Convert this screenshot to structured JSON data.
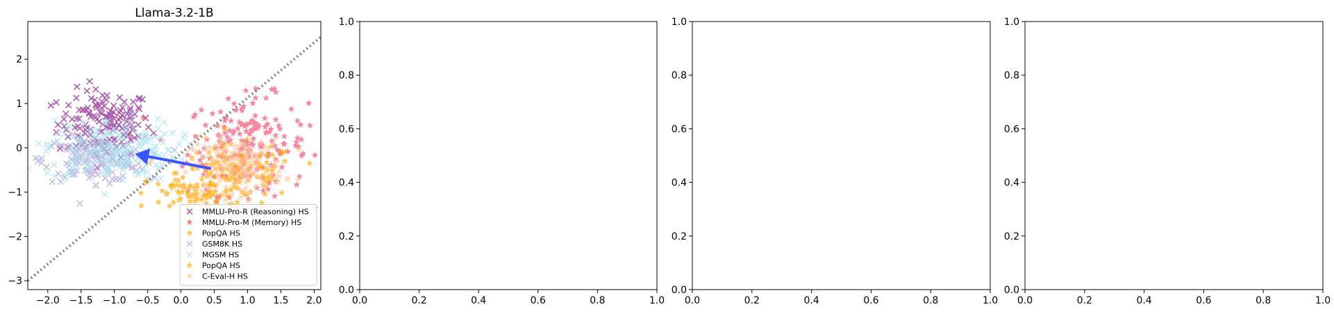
{
  "chart_data": [
    {
      "type": "scatter",
      "title": "Llama-3.2-1B",
      "xlim": [
        -2.3,
        2.1
      ],
      "ylim": [
        -3.2,
        2.85
      ],
      "xticks": [
        -2.0,
        -1.5,
        -1.0,
        -0.5,
        0.0,
        0.5,
        1.0,
        1.5,
        2.0
      ],
      "xtick_labels": [
        "−2.0",
        "−1.5",
        "−1.0",
        "−0.5",
        "0.0",
        "0.5",
        "1.0",
        "1.5",
        "2.0"
      ],
      "yticks": [
        -3,
        -2,
        -1,
        0,
        1,
        2
      ],
      "ytick_labels": [
        "−3",
        "−2",
        "−1",
        "0",
        "1",
        "2"
      ],
      "legend_position": "bottom-right",
      "series": [
        {
          "name": "MMLU-Pro-R (Reasoning) HS",
          "marker": "x",
          "color": "#8b1a8b",
          "center": [
            -1.15,
            0.55
          ],
          "spread": [
            0.35,
            0.38
          ],
          "count": 150
        },
        {
          "name": "MMLU-Pro-M (Memory) HS",
          "marker": "star",
          "color": "#f0486e",
          "center": [
            1.0,
            0.05
          ],
          "spread": [
            0.45,
            0.55
          ],
          "count": 200
        },
        {
          "name": "PopQA HS",
          "marker": "star",
          "color": "#ffa500",
          "center": [
            0.85,
            -0.55
          ],
          "spread": [
            0.45,
            0.3
          ],
          "count": 120
        },
        {
          "name": "GSM8K HS",
          "marker": "x",
          "color": "#b0a0d8",
          "center": [
            -1.3,
            -0.25
          ],
          "spread": [
            0.38,
            0.25
          ],
          "count": 150
        },
        {
          "name": "MGSM HS",
          "marker": "x",
          "color": "#a8e2ee",
          "center": [
            -1.05,
            -0.05
          ],
          "spread": [
            0.5,
            0.35
          ],
          "count": 220
        },
        {
          "name": "PopQA HS",
          "marker": "star",
          "color": "#ffa500",
          "center": [
            0.3,
            -1.05
          ],
          "spread": [
            0.4,
            0.2
          ],
          "count": 80
        },
        {
          "name": "C-Eval-H HS",
          "marker": "star",
          "color": "#ffc89a",
          "center": [
            0.85,
            -0.4
          ],
          "spread": [
            0.35,
            0.3
          ],
          "count": 180
        }
      ],
      "diagonal": {
        "from": [
          -2.3,
          -3.0
        ],
        "to": [
          2.1,
          2.5
        ],
        "color": "#808080",
        "style": "dotted"
      },
      "arrow": {
        "from": [
          0.45,
          -0.47
        ],
        "to": [
          -0.65,
          -0.15
        ],
        "color": "#3a54ff"
      }
    },
    {
      "type": "scatter",
      "xlim": [
        0.0,
        1.0
      ],
      "ylim": [
        0.0,
        1.0
      ],
      "xticks": [
        0.0,
        0.2,
        0.4,
        0.6,
        0.8,
        1.0
      ],
      "xtick_labels": [
        "0.0",
        "0.2",
        "0.4",
        "0.6",
        "0.8",
        "1.0"
      ],
      "yticks": [
        0.0,
        0.2,
        0.4,
        0.6,
        0.8,
        1.0
      ],
      "ytick_labels": [
        "0.0",
        "0.2",
        "0.4",
        "0.6",
        "0.8",
        "1.0"
      ],
      "series": []
    },
    {
      "type": "scatter",
      "xlim": [
        0.0,
        1.0
      ],
      "ylim": [
        0.0,
        1.0
      ],
      "xticks": [
        0.0,
        0.2,
        0.4,
        0.6,
        0.8,
        1.0
      ],
      "xtick_labels": [
        "0.0",
        "0.2",
        "0.4",
        "0.6",
        "0.8",
        "1.0"
      ],
      "yticks": [
        0.0,
        0.2,
        0.4,
        0.6,
        0.8,
        1.0
      ],
      "ytick_labels": [
        "0.0",
        "0.2",
        "0.4",
        "0.6",
        "0.8",
        "1.0"
      ],
      "series": []
    },
    {
      "type": "scatter",
      "xlim": [
        0.0,
        1.0
      ],
      "ylim": [
        0.0,
        1.0
      ],
      "xticks": [
        0.0,
        0.2,
        0.4,
        0.6,
        0.8,
        1.0
      ],
      "xtick_labels": [
        "0.0",
        "0.2",
        "0.4",
        "0.6",
        "0.8",
        "1.0"
      ],
      "yticks": [
        0.0,
        0.2,
        0.4,
        0.6,
        0.8,
        1.0
      ],
      "ytick_labels": [
        "0.0",
        "0.2",
        "0.4",
        "0.6",
        "0.8",
        "1.0"
      ],
      "series": []
    }
  ]
}
